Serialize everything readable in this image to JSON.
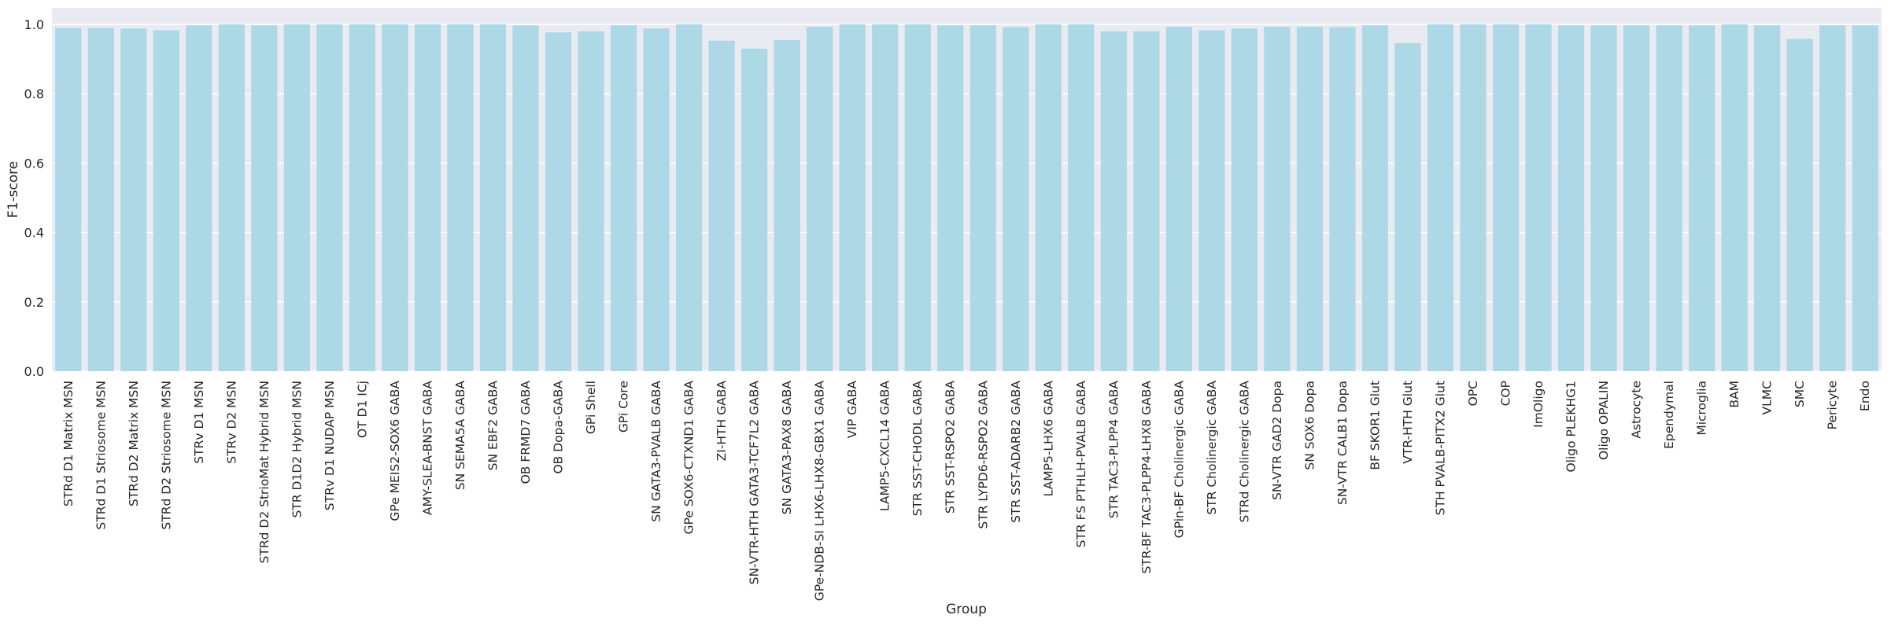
{
  "chart_data": {
    "type": "bar",
    "xlabel": "Group",
    "ylabel": "F1-score",
    "ylim": [
      0,
      1.0
    ],
    "yticks": [
      "0.0",
      "0.2",
      "0.4",
      "0.6",
      "0.8",
      "1.0"
    ],
    "grid": true,
    "bar_color": "#add8e6",
    "background_color": "#eaeaf2",
    "categories": [
      "STRd D1 Matrix MSN",
      "STRd D1 Striosome MSN",
      "STRd D2 Matrix MSN",
      "STRd D2 Striosome MSN",
      "STRv D1 MSN",
      "STRv D2 MSN",
      "STRd D2 StrioMat Hybrid MSN",
      "STR D1D2 Hybrid MSN",
      "STRv D1 NUDAP MSN",
      "OT D1 ICj",
      "GPe MEIS2-SOX6 GABA",
      "AMY-SLEA-BNST GABA",
      "SN SEMA5A GABA",
      "SN EBF2 GABA",
      "OB FRMD7 GABA",
      "OB Dopa-GABA",
      "GPi Shell",
      "GPi Core",
      "SN GATA3-PVALB GABA",
      "GPe SOX6-CTXND1 GABA",
      "ZI-HTH GABA",
      "SN-VTR-HTH GATA3-TCF7L2 GABA",
      "SN GATA3-PAX8 GABA",
      "GPe-NDB-SI LHX6-LHX8-GBX1 GABA",
      "VIP GABA",
      "LAMP5-CXCL14 GABA",
      "STR SST-CHODL GABA",
      "STR SST-RSPO2 GABA",
      "STR LYPD6-RSPO2 GABA",
      "STR SST-ADARB2 GABA",
      "LAMP5-LHX6 GABA",
      "STR FS PTHLH-PVALB GABA",
      "STR TAC3-PLPP4 GABA",
      "STR-BF TAC3-PLPP4-LHX8 GABA",
      "GPin-BF Cholinergic GABA",
      "STR Cholinergic GABA",
      "STRd Cholinergic GABA",
      "SN-VTR GAD2 Dopa",
      "SN SOX6 Dopa",
      "SN-VTR CALB1 Dopa",
      "BF SKOR1 Glut",
      "VTR-HTH Glut",
      "STH PVALB-PITX2 Glut",
      "OPC",
      "COP",
      "ImOligo",
      "Oligo PLEKHG1",
      "Oligo OPALIN",
      "Astrocyte",
      "Ependymal",
      "Microglia",
      "BAM",
      "VLMC",
      "SMC",
      "Pericyte",
      "Endo"
    ],
    "values": [
      0.99,
      0.99,
      0.988,
      0.983,
      0.997,
      1.0,
      0.997,
      1.0,
      1.0,
      1.0,
      1.0,
      1.0,
      1.0,
      1.0,
      0.997,
      0.977,
      0.98,
      0.997,
      0.988,
      1.0,
      0.953,
      0.93,
      0.955,
      0.993,
      1.0,
      1.0,
      1.0,
      0.997,
      0.997,
      0.992,
      1.0,
      1.0,
      0.98,
      0.98,
      0.993,
      0.983,
      0.988,
      0.993,
      0.993,
      0.992,
      0.997,
      0.946,
      1.0,
      1.0,
      1.0,
      1.0,
      0.997,
      0.997,
      0.997,
      0.997,
      0.997,
      1.0,
      0.997,
      0.958,
      0.997,
      0.997
    ]
  }
}
